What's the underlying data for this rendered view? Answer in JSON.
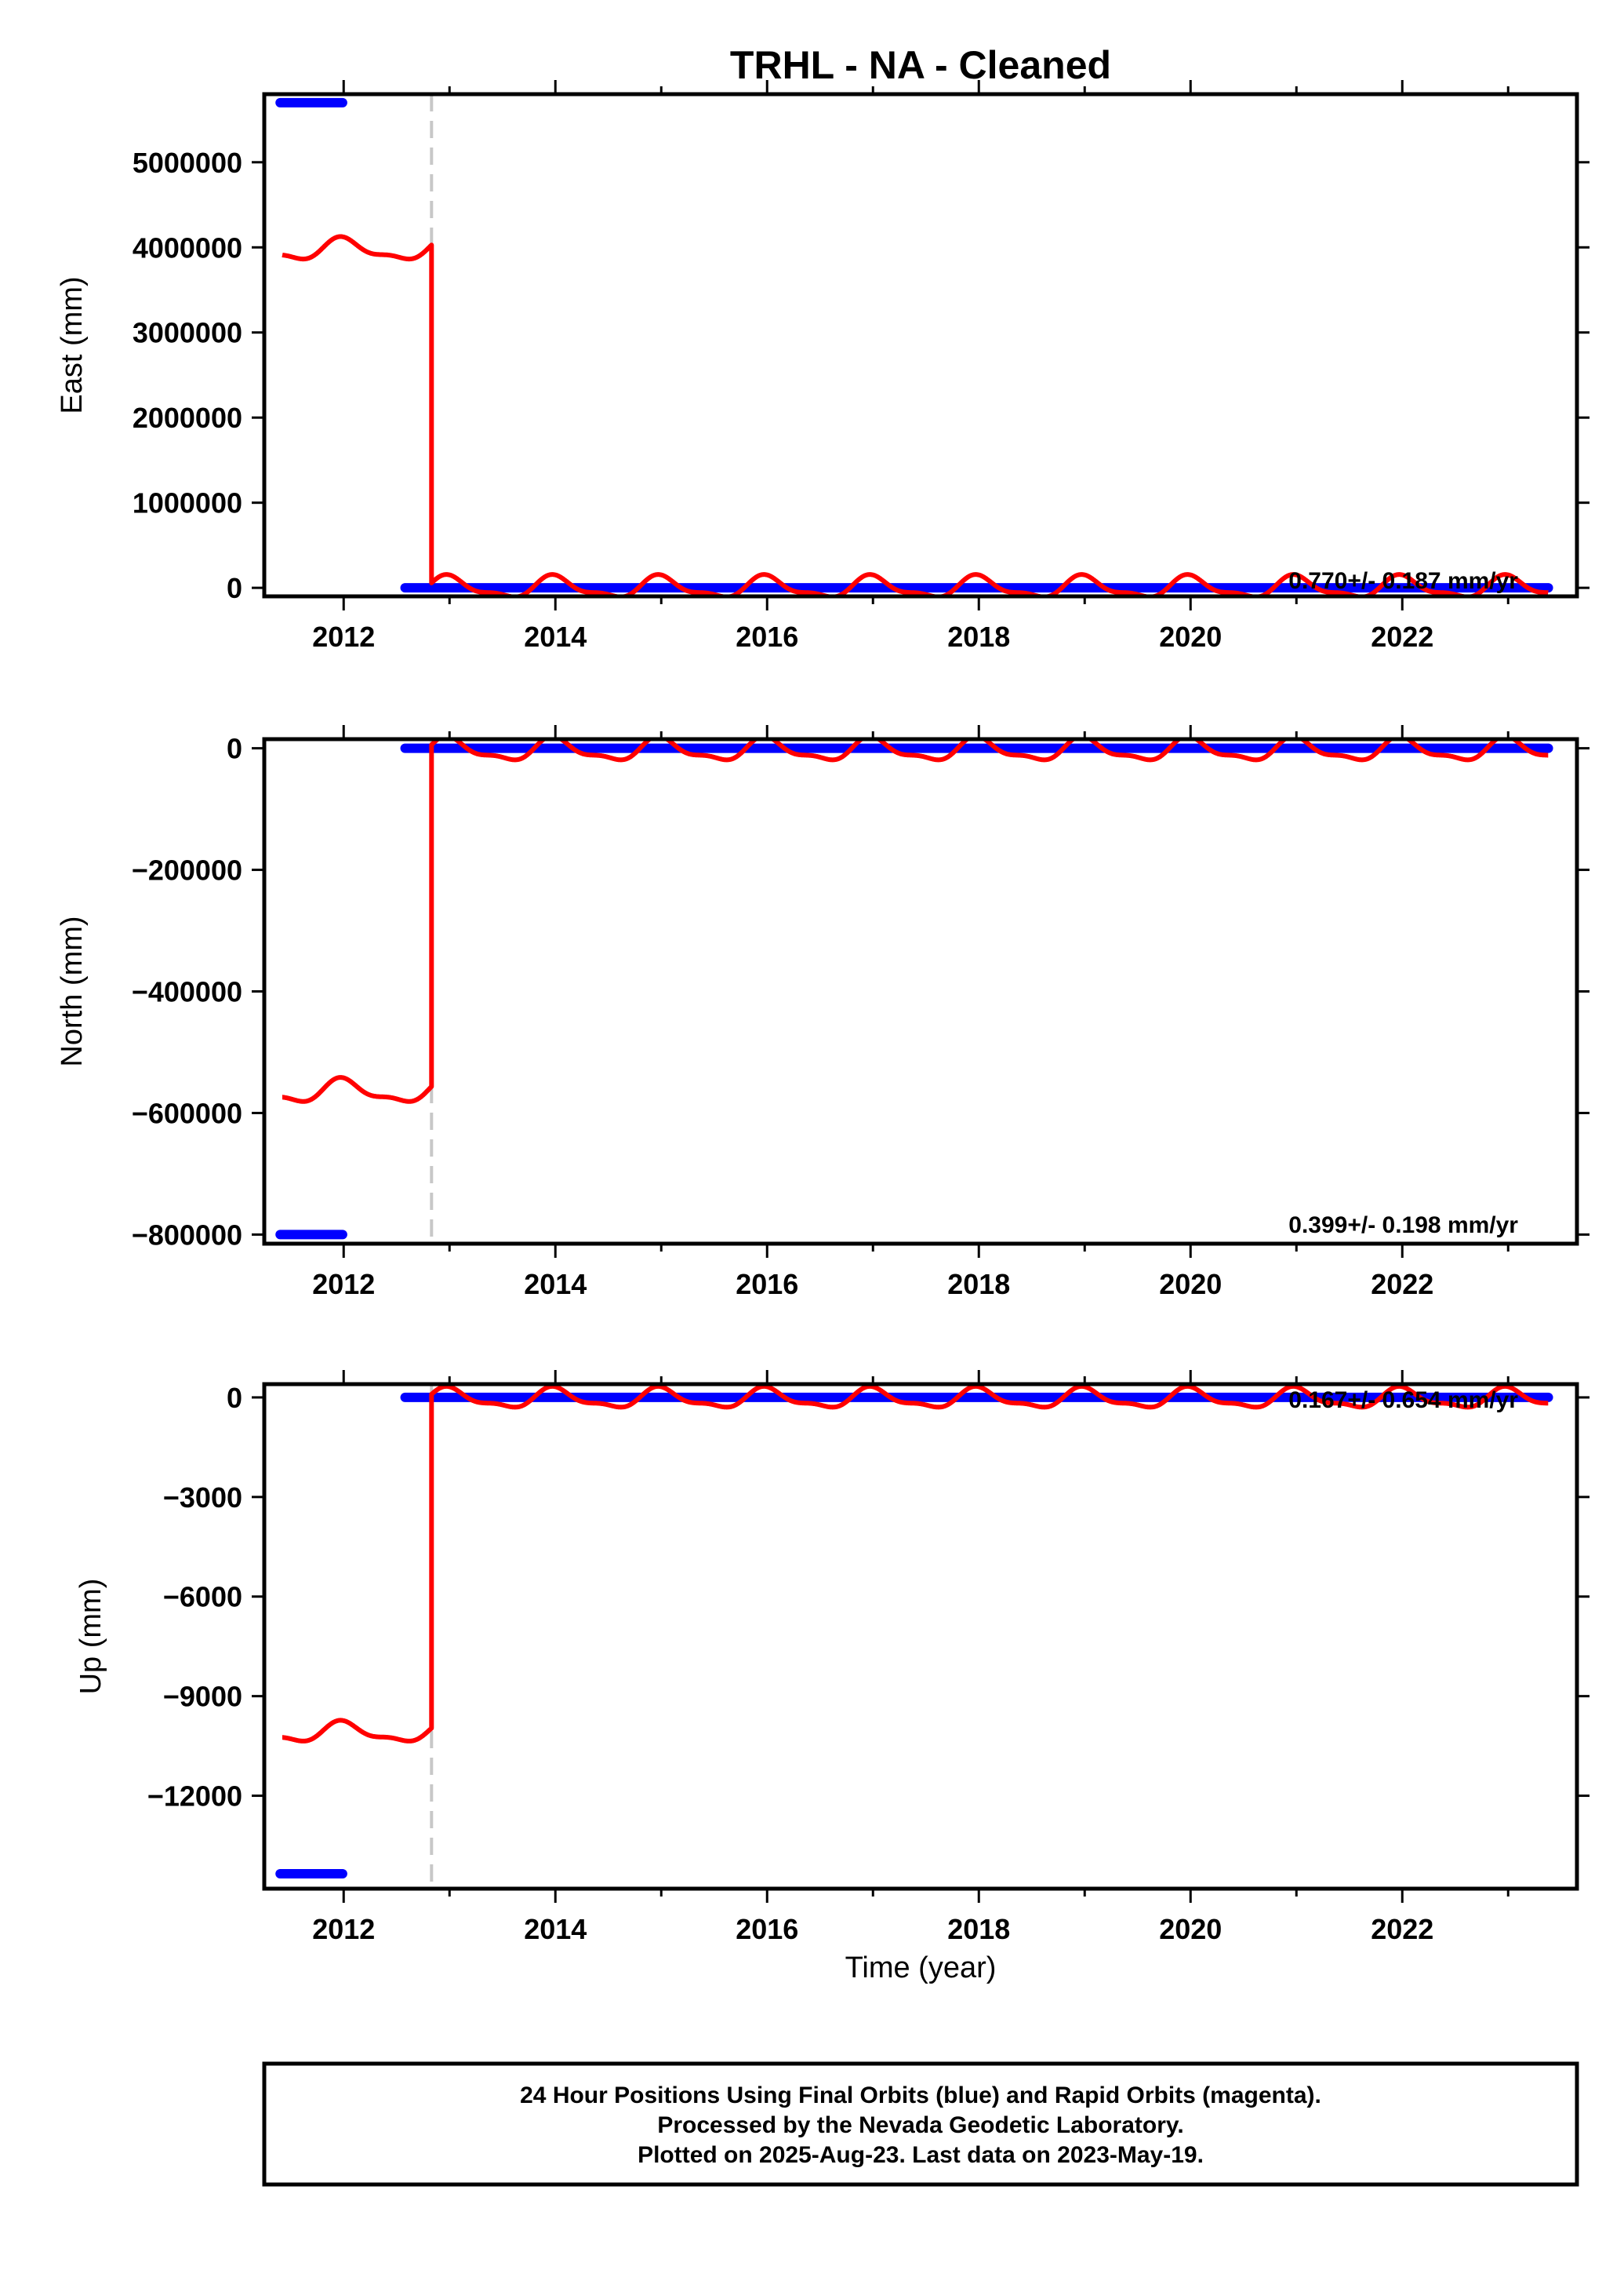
{
  "title": "TRHL  - NA - Cleaned",
  "xlabel": "Time (year)",
  "colors": {
    "final": "#0000ff",
    "rapid": "#ff0000",
    "offset_line": "#c8c8c8"
  },
  "footer": {
    "line1": "24 Hour Positions Using Final Orbits (blue) and Rapid Orbits (magenta).",
    "line2": "Processed by the Nevada Geodetic Laboratory.",
    "line3": "Plotted on 2025-Aug-23. Last data on 2023-May-19."
  },
  "chart_data": [
    {
      "type": "scatter",
      "ylabel": "East (mm)",
      "xlim": [
        2011.25,
        2023.65
      ],
      "ylim": [
        -100000,
        5800000
      ],
      "xticks": [
        2012,
        2014,
        2016,
        2018,
        2020,
        2022
      ],
      "xticklabels": [
        "2012",
        "2014",
        "2016",
        "2018",
        "2020",
        "2022"
      ],
      "yticks": [
        0,
        1000000,
        2000000,
        3000000,
        4000000,
        5000000
      ],
      "yticklabels": [
        "0",
        "1000000",
        "2000000",
        "3000000",
        "4000000",
        "5000000"
      ],
      "offset_x": 2012.83,
      "rate_label": "0.770+/- 0.187 mm/yr",
      "series": [
        {
          "segments": [
            {
              "x": [
                2011.4,
                2011.99
              ],
              "y": [
                5700000,
                5700000
              ]
            },
            {
              "x": [
                2012.58,
                2023.38
              ],
              "y": [
                0,
                0
              ]
            }
          ]
        },
        {
          "model": {
            "jump_x": 2012.83,
            "pre": 3970000,
            "post": 0,
            "amplitude": 160000,
            "pre_slope": 0,
            "post_slope": 0
          }
        }
      ]
    },
    {
      "type": "scatter",
      "ylabel": "North (mm)",
      "xlim": [
        2011.25,
        2023.65
      ],
      "ylim": [
        -815000,
        15000
      ],
      "xticks": [
        2012,
        2014,
        2016,
        2018,
        2020,
        2022
      ],
      "xticklabels": [
        "2012",
        "2014",
        "2016",
        "2018",
        "2020",
        "2022"
      ],
      "yticks": [
        0,
        -200000,
        -400000,
        -600000,
        -800000
      ],
      "yticklabels": [
        "0",
        "−200000",
        "−400000",
        "−600000",
        "−800000"
      ],
      "offset_x": 2012.83,
      "rate_label": "0.399+/- 0.198 mm/yr",
      "series": [
        {
          "segments": [
            {
              "x": [
                2011.4,
                2011.99
              ],
              "y": [
                -800000,
                -800000
              ]
            },
            {
              "x": [
                2012.58,
                2023.38
              ],
              "y": [
                0,
                0
              ]
            }
          ]
        },
        {
          "model": {
            "jump_x": 2012.83,
            "pre": -565000,
            "post": -3000,
            "amplitude": 24000,
            "pre_slope": 0,
            "post_slope": 0
          }
        }
      ]
    },
    {
      "type": "scatter",
      "ylabel": "Up (mm)",
      "xlim": [
        2011.25,
        2023.65
      ],
      "ylim": [
        -14800,
        400
      ],
      "xticks": [
        2012,
        2014,
        2016,
        2018,
        2020,
        2022
      ],
      "xticklabels": [
        "2012",
        "2014",
        "2016",
        "2018",
        "2020",
        "2022"
      ],
      "yticks": [
        0,
        -3000,
        -6000,
        -9000,
        -12000
      ],
      "yticklabels": [
        "0",
        "−3000",
        "−6000",
        "−9000",
        "−12000"
      ],
      "offset_x": 2012.83,
      "rate_label": "0.167+/- 0.654 mm/yr",
      "series": [
        {
          "segments": [
            {
              "x": [
                2011.4,
                2011.99
              ],
              "y": [
                -14350,
                -14350
              ]
            },
            {
              "x": [
                2012.58,
                2023.38
              ],
              "y": [
                0,
                0
              ]
            }
          ]
        },
        {
          "model": {
            "jump_x": 2012.83,
            "pre": -10100,
            "post": -40,
            "amplitude": 380,
            "pre_slope": 0,
            "post_slope": 0
          }
        }
      ]
    }
  ]
}
